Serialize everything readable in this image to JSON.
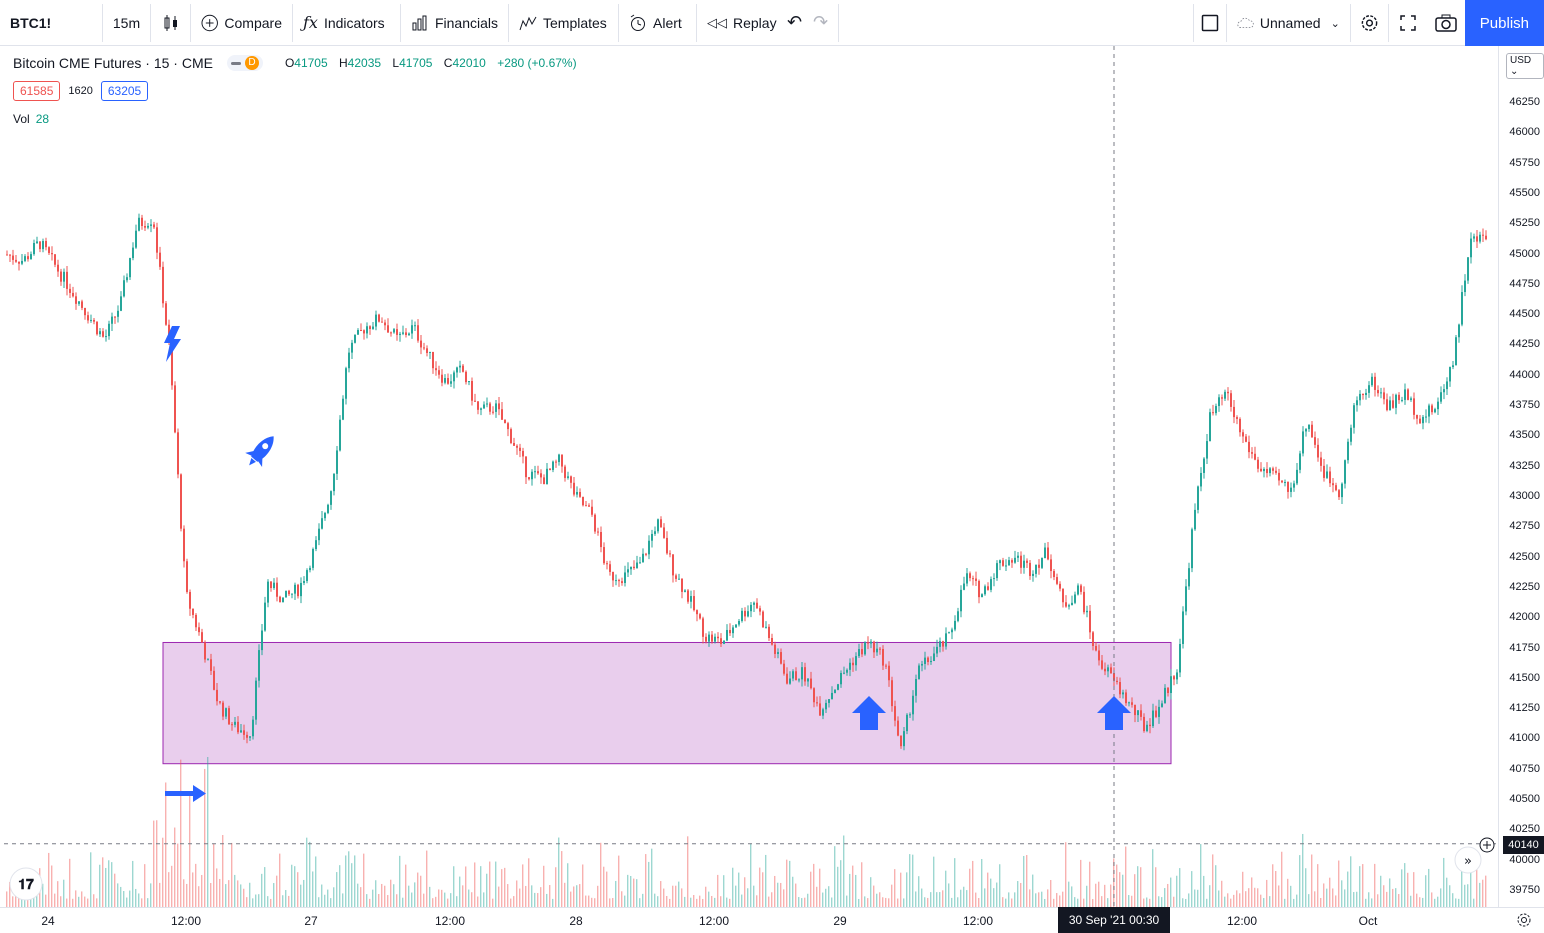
{
  "toolbar": {
    "symbol": "BTC1!",
    "interval": "15m",
    "compare": "Compare",
    "indicators": "Indicators",
    "financials": "Financials",
    "templates": "Templates",
    "alert": "Alert",
    "replay": "Replay",
    "layout_name": "Unnamed",
    "publish": "Publish"
  },
  "legend": {
    "title": "Bitcoin CME Futures · 15 · CME",
    "badge": "D",
    "o_key": "O",
    "o": "41705",
    "h_key": "H",
    "h": "42035",
    "l_key": "L",
    "l": "41705",
    "c_key": "C",
    "c": "42010",
    "change": "+280 (+0.67%)",
    "bid": "61585",
    "spread": "1620",
    "ask": "63205",
    "vol_label": "Vol",
    "vol_value": "28"
  },
  "price_scale": {
    "currency": "USD",
    "labels": [
      "46250",
      "46000",
      "45750",
      "45500",
      "45250",
      "45000",
      "44750",
      "44500",
      "44250",
      "44000",
      "43750",
      "43500",
      "43250",
      "43000",
      "42750",
      "42500",
      "42250",
      "42000",
      "41750",
      "41500",
      "41250",
      "41000",
      "40750",
      "40500",
      "40250",
      "40000",
      "39750"
    ],
    "current_price": "40140"
  },
  "time_scale": {
    "labels": [
      "24",
      "12:00",
      "27",
      "12:00",
      "28",
      "12:00",
      "29",
      "12:00",
      "12:00",
      "Oct"
    ],
    "crosshair_time": "30 Sep '21   00:30"
  },
  "colors": {
    "up": "#26a69a",
    "down": "#ef5350",
    "zone_fill": "#e1bee7",
    "zone_border": "#9c27b0",
    "icon_blue": "#2962ff"
  },
  "chart_data": {
    "type": "candlestick",
    "y_unit": "USD",
    "ylim": [
      39650,
      46450
    ],
    "x_labels": [
      "24",
      "12:00",
      "27",
      "12:00",
      "28",
      "12:00",
      "29",
      "12:00",
      "30 Sep '21 00:30",
      "12:00",
      "Oct"
    ],
    "anchor_closes": [
      45000,
      44950,
      45100,
      44900,
      44700,
      44500,
      44300,
      44600,
      45250,
      45300,
      44200,
      42200,
      41800,
      41300,
      41100,
      41050,
      42300,
      42150,
      42250,
      42600,
      43100,
      44200,
      44400,
      44480,
      44300,
      44400,
      44150,
      43950,
      44050,
      43700,
      43750,
      43500,
      43200,
      43150,
      43300,
      43000,
      42850,
      42350,
      42350,
      42450,
      42800,
      42400,
      42150,
      41850,
      41800,
      42000,
      42150,
      41800,
      41500,
      41550,
      41250,
      41450,
      41650,
      41800,
      41650,
      40900,
      41550,
      41700,
      41850,
      42350,
      42200,
      42450,
      42500,
      42400,
      42550,
      42100,
      42250,
      41700,
      41500,
      41300,
      41100,
      41300,
      41600,
      42800,
      43650,
      43850,
      43500,
      43250,
      43150,
      43050,
      43650,
      43200,
      43050,
      43800,
      43950,
      43750,
      43850,
      43650,
      43750,
      44150,
      45100,
      45150
    ],
    "zone": {
      "price_low": 40800,
      "price_high": 41800
    },
    "crosshair_price": 40140
  }
}
